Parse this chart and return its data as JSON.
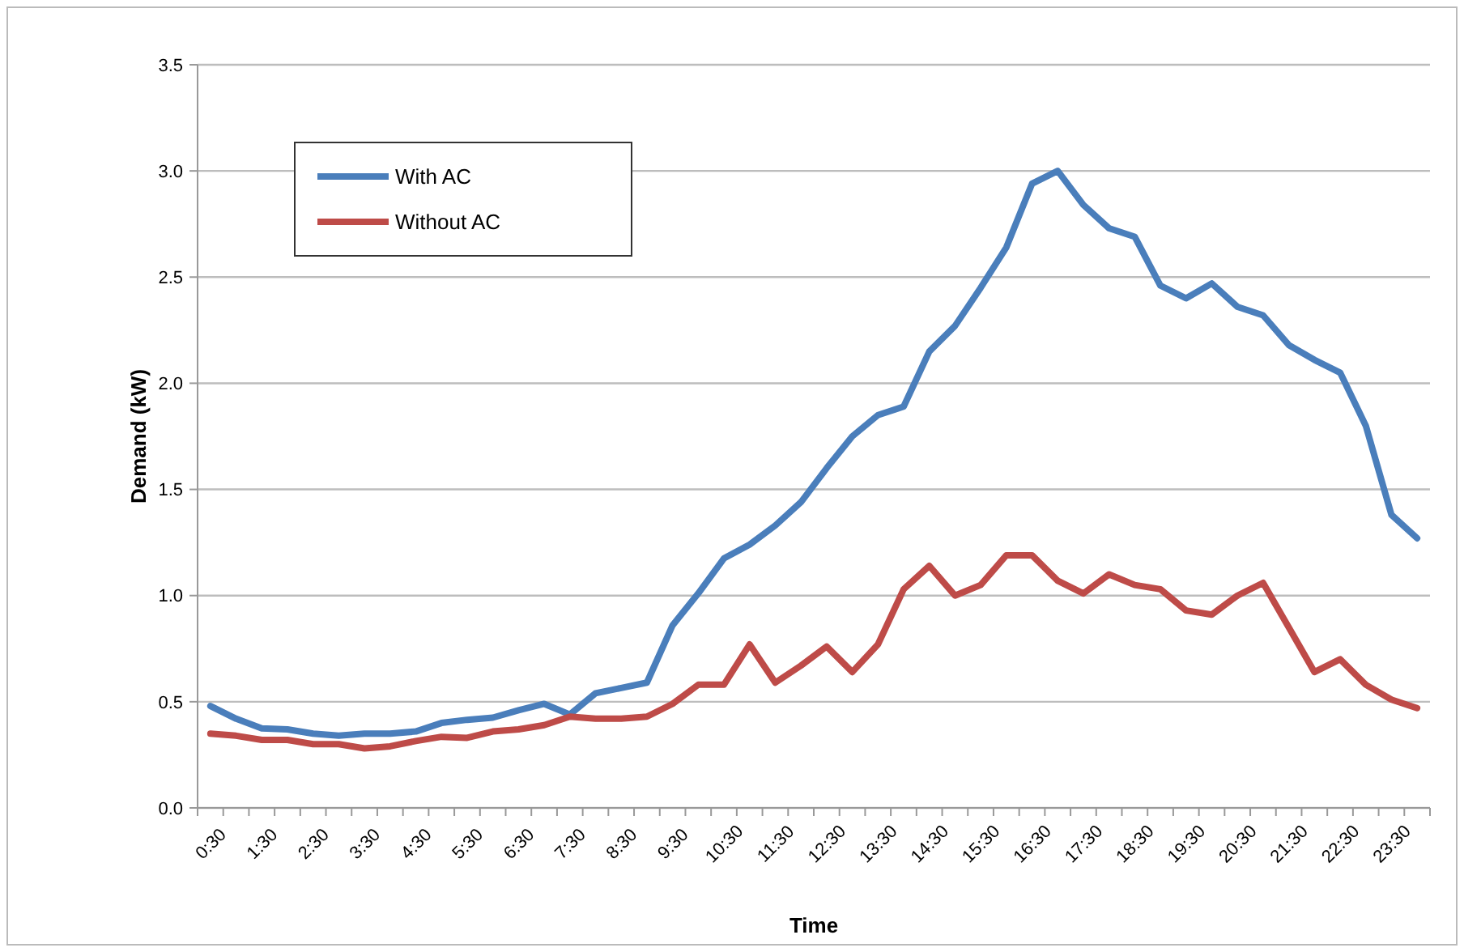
{
  "chart_data": {
    "type": "line",
    "xlabel": "Time",
    "ylabel": "Demand (kW)",
    "categories": [
      "0:30",
      null,
      "1:30",
      null,
      "2:30",
      null,
      "3:30",
      null,
      "4:30",
      null,
      "5:30",
      null,
      "6:30",
      null,
      "7:30",
      null,
      "8:30",
      null,
      "9:30",
      null,
      "10:30",
      null,
      "11:30",
      null,
      "12:30",
      null,
      "13:30",
      null,
      "14:30",
      null,
      "15:30",
      null,
      "16:30",
      null,
      "17:30",
      null,
      "18:30",
      null,
      "19:30",
      null,
      "20:30",
      null,
      "21:30",
      null,
      "22:30",
      null,
      "23:30",
      null
    ],
    "series": [
      {
        "name": "With AC",
        "color": "#4a7ebb",
        "values": [
          0.48,
          0.42,
          0.375,
          0.37,
          0.35,
          0.34,
          0.35,
          0.35,
          0.36,
          0.4,
          0.415,
          0.425,
          0.46,
          0.49,
          0.44,
          0.54,
          0.565,
          0.59,
          0.86,
          1.01,
          1.175,
          1.24,
          1.33,
          1.44,
          1.6,
          1.75,
          1.85,
          1.89,
          2.15,
          2.27,
          2.45,
          2.64,
          2.94,
          3.0,
          2.84,
          2.73,
          2.69,
          2.46,
          2.4,
          2.47,
          2.36,
          2.32,
          2.18,
          2.11,
          2.05,
          1.8,
          1.38,
          1.27
        ]
      },
      {
        "name": "Without AC",
        "color": "#be4b48",
        "values": [
          0.35,
          0.34,
          0.32,
          0.32,
          0.3,
          0.3,
          0.28,
          0.29,
          0.315,
          0.335,
          0.33,
          0.36,
          0.37,
          0.39,
          0.43,
          0.42,
          0.42,
          0.43,
          0.49,
          0.58,
          0.58,
          0.77,
          0.59,
          0.67,
          0.76,
          0.64,
          0.77,
          1.03,
          1.14,
          1.0,
          1.05,
          1.19,
          1.19,
          1.07,
          1.01,
          1.1,
          1.05,
          1.03,
          0.93,
          0.91,
          1.0,
          1.06,
          0.85,
          0.64,
          0.7,
          0.58,
          0.51,
          0.47
        ]
      }
    ],
    "ylim": [
      0,
      3.5
    ],
    "yticks": [
      {
        "value": 0,
        "label": "0.0"
      },
      {
        "value": 0.5,
        "label": "0.5"
      },
      {
        "value": 1,
        "label": "1.0"
      },
      {
        "value": 1.5,
        "label": "1.5"
      },
      {
        "value": 2,
        "label": "2.0"
      },
      {
        "value": 2.5,
        "label": "2.5"
      },
      {
        "value": 3,
        "label": "3.0"
      },
      {
        "value": 3.5,
        "label": "3.5"
      }
    ],
    "grid": "y",
    "legend": "top left",
    "marker": "none",
    "line_style": "solid"
  }
}
